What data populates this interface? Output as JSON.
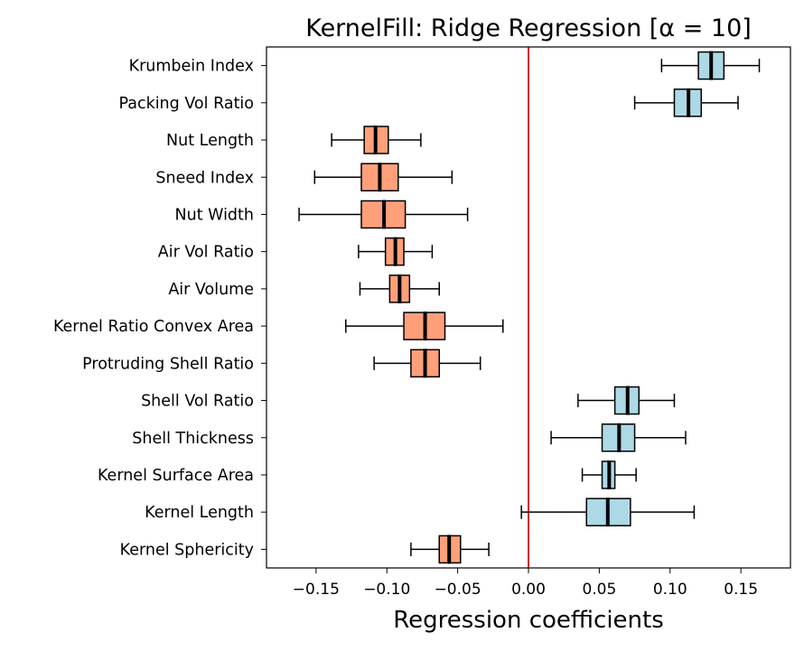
{
  "chart_data": {
    "type": "boxplot-horizontal",
    "title": "KernelFill: Ridge Regression [α = 10]",
    "xlabel": "Regression coefficients",
    "ylabel": "",
    "xlim": [
      -0.185,
      0.185
    ],
    "xticks": [
      -0.15,
      -0.1,
      -0.05,
      0.0,
      0.05,
      0.1,
      0.15
    ],
    "xtick_labels": [
      "−0.15",
      "−0.10",
      "−0.05",
      "0.00",
      "0.05",
      "0.10",
      "0.15"
    ],
    "zero_line_color": "#d62728",
    "positive_color": "#add8e6",
    "negative_color": "#ffa07a",
    "grid": false,
    "boxes": [
      {
        "label": "Krumbein Index",
        "whisker_low": 0.094,
        "q1": 0.12,
        "median": 0.129,
        "q3": 0.138,
        "whisker_high": 0.163
      },
      {
        "label": "Packing Vol Ratio",
        "whisker_low": 0.075,
        "q1": 0.103,
        "median": 0.113,
        "q3": 0.122,
        "whisker_high": 0.148
      },
      {
        "label": "Nut Length",
        "whisker_low": -0.139,
        "q1": -0.116,
        "median": -0.108,
        "q3": -0.099,
        "whisker_high": -0.076
      },
      {
        "label": "Sneed Index",
        "whisker_low": -0.151,
        "q1": -0.118,
        "median": -0.105,
        "q3": -0.092,
        "whisker_high": -0.054
      },
      {
        "label": "Nut Width",
        "whisker_low": -0.162,
        "q1": -0.118,
        "median": -0.102,
        "q3": -0.087,
        "whisker_high": -0.043
      },
      {
        "label": "Air Vol Ratio",
        "whisker_low": -0.12,
        "q1": -0.101,
        "median": -0.094,
        "q3": -0.088,
        "whisker_high": -0.068
      },
      {
        "label": "Air Volume",
        "whisker_low": -0.119,
        "q1": -0.098,
        "median": -0.091,
        "q3": -0.084,
        "whisker_high": -0.063
      },
      {
        "label": "Kernel Ratio Convex Area",
        "whisker_low": -0.129,
        "q1": -0.088,
        "median": -0.073,
        "q3": -0.059,
        "whisker_high": -0.018
      },
      {
        "label": "Protruding Shell Ratio",
        "whisker_low": -0.109,
        "q1": -0.083,
        "median": -0.073,
        "q3": -0.063,
        "whisker_high": -0.034
      },
      {
        "label": "Shell Vol Ratio",
        "whisker_low": 0.035,
        "q1": 0.061,
        "median": 0.07,
        "q3": 0.078,
        "whisker_high": 0.103
      },
      {
        "label": "Shell Thickness",
        "whisker_low": 0.016,
        "q1": 0.052,
        "median": 0.064,
        "q3": 0.075,
        "whisker_high": 0.111
      },
      {
        "label": "Kernel Surface Area",
        "whisker_low": 0.038,
        "q1": 0.052,
        "median": 0.057,
        "q3": 0.061,
        "whisker_high": 0.076
      },
      {
        "label": "Kernel Length",
        "whisker_low": -0.005,
        "q1": 0.041,
        "median": 0.056,
        "q3": 0.072,
        "whisker_high": 0.117
      },
      {
        "label": "Kernel Sphericity",
        "whisker_low": -0.083,
        "q1": -0.063,
        "median": -0.056,
        "q3": -0.048,
        "whisker_high": -0.028
      }
    ]
  }
}
